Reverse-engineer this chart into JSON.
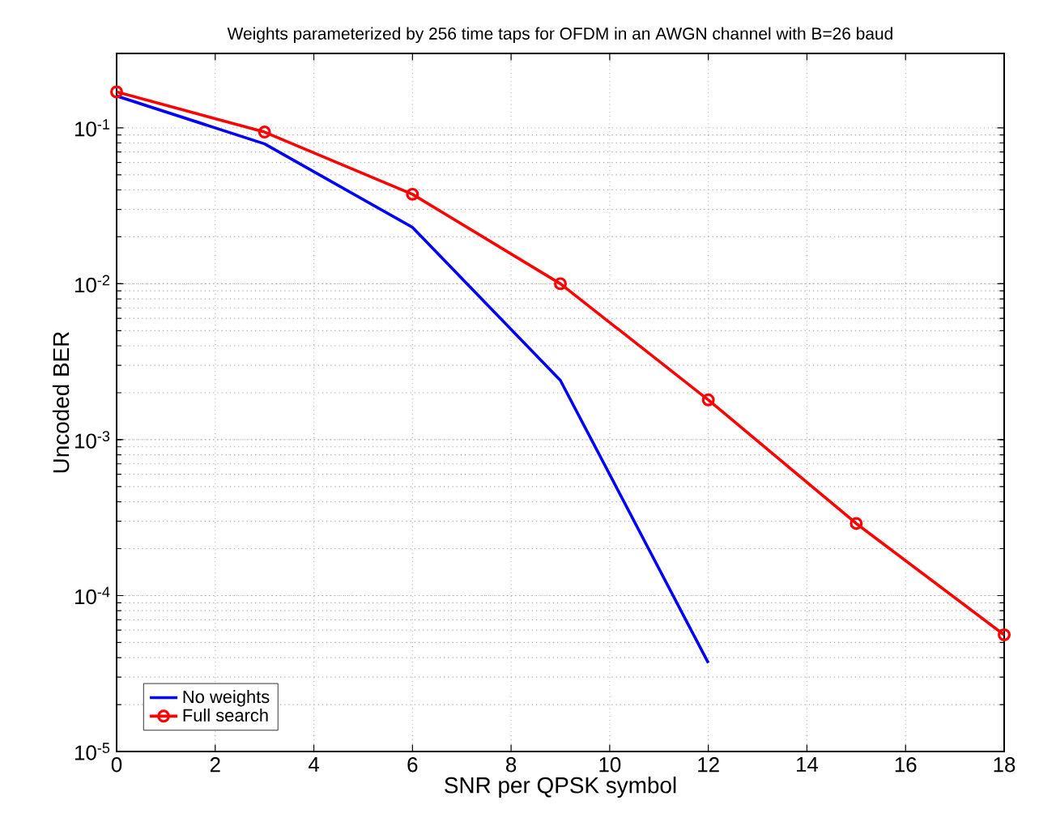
{
  "chart_data": {
    "type": "line",
    "title": "Weights parameterized by 256 time taps for OFDM in an AWGN channel with B=26 baud",
    "xlabel": "SNR per QPSK symbol",
    "ylabel": "Uncoded BER",
    "log": "y",
    "grid": true,
    "legend": "bottom left",
    "line_style": "solid",
    "x": [
      0,
      3,
      6,
      9,
      12,
      15,
      18
    ],
    "xlim": [
      0,
      18
    ],
    "xticks": [
      0,
      2,
      4,
      6,
      8,
      10,
      12,
      14,
      16,
      18
    ],
    "ylim": [
      1e-05,
      0.3
    ],
    "yticks": [
      {
        "value": 1e-05,
        "label": "10$^{-5}$"
      },
      {
        "value": 0.0001,
        "label": "10$^{-4}$"
      },
      {
        "value": 0.001,
        "label": "10$^{-3}$"
      },
      {
        "value": 0.01,
        "label": "10$^{-2}$"
      },
      {
        "value": 0.1,
        "label": "10$^{-1}$"
      }
    ],
    "series": [
      {
        "name": "No weights",
        "color": "#0000ff",
        "marker": "none",
        "values": [
          0.16,
          0.079,
          0.023,
          0.0024,
          3.7e-05,
          null,
          null
        ]
      },
      {
        "name": "Full search",
        "color": "#ff0000",
        "marker": "circle",
        "values": [
          0.17,
          0.094,
          0.0375,
          0.01,
          0.0018,
          0.00029,
          5.6e-05
        ]
      }
    ]
  }
}
